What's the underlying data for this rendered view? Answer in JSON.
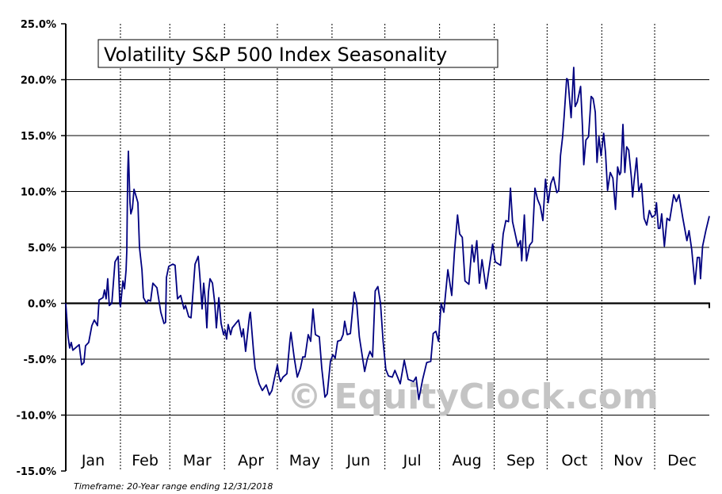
{
  "chart_data": {
    "type": "line",
    "title": "Volatility S&P 500 Index Seasonality",
    "footnote": "Timeframe: 20-Year range ending 12/31/2018",
    "watermark": "© EquityClock.com",
    "xlabel": "",
    "ylabel": "",
    "ylim": [
      -15,
      25
    ],
    "xlim": [
      0,
      365
    ],
    "x_unit": "day of year",
    "y_ticks": [
      25,
      20,
      15,
      10,
      5,
      0,
      -5,
      -10,
      -15
    ],
    "y_tick_labels": [
      "25.0%",
      "20.0%",
      "15.0%",
      "10.0%",
      "5.0%",
      "0.0%",
      "-5.0%",
      "-10.0%",
      "-15.0%"
    ],
    "months": [
      "Jan",
      "Feb",
      "Mar",
      "Apr",
      "May",
      "Jun",
      "Jul",
      "Aug",
      "Sep",
      "Oct",
      "Nov",
      "Dec"
    ],
    "month_start_days": [
      0,
      31,
      59,
      90,
      120,
      151,
      181,
      212,
      243,
      273,
      304,
      334
    ],
    "grid": true,
    "colors": {
      "line": "#000080",
      "grid": "#000000",
      "watermark": "#c4c4c4"
    },
    "series": [
      {
        "name": "Volatility S&P 500 Index",
        "points": [
          [
            0,
            0
          ],
          [
            1.3,
            -3
          ],
          [
            2.2,
            -4
          ],
          [
            3.1,
            -3.5
          ],
          [
            4,
            -4.2
          ],
          [
            5.4,
            -4
          ],
          [
            7.6,
            -3.7
          ],
          [
            9,
            -5.5
          ],
          [
            10.3,
            -5.3
          ],
          [
            11.2,
            -3.8
          ],
          [
            13,
            -3.5
          ],
          [
            14.8,
            -2
          ],
          [
            16.2,
            -1.5
          ],
          [
            18,
            -2
          ],
          [
            18.9,
            0.3
          ],
          [
            21.1,
            0.5
          ],
          [
            22,
            1.2
          ],
          [
            22.9,
            0.4
          ],
          [
            23.8,
            2.2
          ],
          [
            24.7,
            -0.2
          ],
          [
            26.1,
            0
          ],
          [
            27.9,
            3.7
          ],
          [
            29.7,
            4.2
          ],
          [
            30.6,
            0
          ],
          [
            31,
            -0.3
          ],
          [
            32.4,
            2
          ],
          [
            33.3,
            1.3
          ],
          [
            34.2,
            3
          ],
          [
            34.6,
            4.7
          ],
          [
            35.1,
            11.5
          ],
          [
            35.5,
            13.6
          ],
          [
            36.4,
            9
          ],
          [
            36.9,
            8
          ],
          [
            37.8,
            8.5
          ],
          [
            38.7,
            10.2
          ],
          [
            40,
            9.5
          ],
          [
            40.9,
            9
          ],
          [
            41.8,
            5
          ],
          [
            43.2,
            3
          ],
          [
            44.1,
            0.5
          ],
          [
            45.8,
            0
          ],
          [
            46.7,
            0.3
          ],
          [
            48.1,
            0.2
          ],
          [
            49.4,
            1.8
          ],
          [
            51.7,
            1.4
          ],
          [
            53.9,
            -0.8
          ],
          [
            55.7,
            -1.8
          ],
          [
            56.6,
            -1.7
          ],
          [
            57.1,
            2.3
          ],
          [
            58.4,
            3.3
          ],
          [
            60.7,
            3.5
          ],
          [
            62,
            3.4
          ],
          [
            63.4,
            0.4
          ],
          [
            65.2,
            0.7
          ],
          [
            67,
            -0.5
          ],
          [
            67.9,
            -0.2
          ],
          [
            69.7,
            -1.2
          ],
          [
            71,
            -1.3
          ],
          [
            71.9,
            0.5
          ],
          [
            73.3,
            3.5
          ],
          [
            75.1,
            4.2
          ],
          [
            76,
            2.5
          ],
          [
            77.3,
            -0.5
          ],
          [
            78.2,
            1.8
          ],
          [
            79.1,
            0.3
          ],
          [
            80,
            -2.2
          ],
          [
            80.9,
            1
          ],
          [
            81.8,
            2.2
          ],
          [
            83.2,
            1.8
          ],
          [
            84.5,
            0
          ],
          [
            85.4,
            -2.2
          ],
          [
            86.8,
            0.5
          ],
          [
            88.1,
            -1.8
          ],
          [
            89.5,
            -2.8
          ],
          [
            90.4,
            -2.4
          ],
          [
            91.2,
            -3.2
          ],
          [
            92.1,
            -1.9
          ],
          [
            93.5,
            -2.8
          ],
          [
            94.4,
            -2.2
          ],
          [
            98,
            -1.5
          ],
          [
            99.8,
            -3
          ],
          [
            100.7,
            -2.3
          ],
          [
            102,
            -4.3
          ],
          [
            104.3,
            -1
          ],
          [
            104.7,
            -0.8
          ],
          [
            106.5,
            -4.3
          ],
          [
            107.4,
            -5.8
          ],
          [
            109.7,
            -7.2
          ],
          [
            111.5,
            -7.8
          ],
          [
            113.7,
            -7.3
          ],
          [
            115.5,
            -8.2
          ],
          [
            116.9,
            -7.8
          ],
          [
            118.2,
            -6.8
          ],
          [
            120,
            -5.5
          ],
          [
            120.9,
            -6.5
          ],
          [
            121.8,
            -7
          ],
          [
            123.2,
            -6.6
          ],
          [
            125.4,
            -6.3
          ],
          [
            127.2,
            -3.2
          ],
          [
            127.7,
            -2.6
          ],
          [
            129.5,
            -4.8
          ],
          [
            131.3,
            -6.6
          ],
          [
            133.1,
            -5.8
          ],
          [
            134.4,
            -4.8
          ],
          [
            135.7,
            -4.8
          ],
          [
            137.5,
            -2.8
          ],
          [
            138.9,
            -3.4
          ],
          [
            140.2,
            -0.5
          ],
          [
            141.6,
            -2.8
          ],
          [
            143.8,
            -3
          ],
          [
            145.2,
            -5.8
          ],
          [
            147,
            -8.4
          ],
          [
            148.3,
            -8.1
          ],
          [
            150.1,
            -5.2
          ],
          [
            151.5,
            -4.6
          ],
          [
            152.8,
            -4.9
          ],
          [
            154.2,
            -3.4
          ],
          [
            156,
            -3.3
          ],
          [
            157.3,
            -2.8
          ],
          [
            158.2,
            -1.6
          ],
          [
            159.6,
            -2.8
          ],
          [
            161.4,
            -2.7
          ],
          [
            162.7,
            -0.5
          ],
          [
            163.6,
            1
          ],
          [
            165,
            0
          ],
          [
            166.5,
            -3
          ],
          [
            169.5,
            -6.1
          ],
          [
            171,
            -5
          ],
          [
            172.5,
            -4.3
          ],
          [
            174,
            -4.8
          ],
          [
            175.5,
            1.1
          ],
          [
            177,
            1.5
          ],
          [
            178.5,
            0
          ],
          [
            180,
            -3.4
          ],
          [
            181.5,
            -5.9
          ],
          [
            183,
            -6.5
          ],
          [
            185.2,
            -6.6
          ],
          [
            186.7,
            -6
          ],
          [
            189.7,
            -7.2
          ],
          [
            192,
            -5.1
          ],
          [
            194.2,
            -6.8
          ],
          [
            197.2,
            -7
          ],
          [
            198.7,
            -6.6
          ],
          [
            200.2,
            -8.6
          ],
          [
            202.4,
            -6.8
          ],
          [
            204.7,
            -5.3
          ],
          [
            207,
            -5.2
          ],
          [
            208.4,
            -2.7
          ],
          [
            209.9,
            -2.5
          ],
          [
            211.4,
            -3.4
          ],
          [
            212.9,
            0
          ],
          [
            214.4,
            -0.8
          ],
          [
            216.7,
            3
          ],
          [
            218.9,
            0.7
          ],
          [
            220.4,
            4.5
          ],
          [
            222.2,
            7.9
          ],
          [
            223.4,
            6.2
          ],
          [
            224.9,
            5.9
          ],
          [
            226.4,
            2
          ],
          [
            228.6,
            1.7
          ],
          [
            230.4,
            5.2
          ],
          [
            231.6,
            3.7
          ],
          [
            233.1,
            5.6
          ],
          [
            234.6,
            1.8
          ],
          [
            236.1,
            3.9
          ],
          [
            238.4,
            1.3
          ],
          [
            240.6,
            3.7
          ],
          [
            242.1,
            5.3
          ],
          [
            243.6,
            3.7
          ],
          [
            246.6,
            3.4
          ],
          [
            248.1,
            6.2
          ],
          [
            249.6,
            7.4
          ],
          [
            251.1,
            7.3
          ],
          [
            252.2,
            10.3
          ],
          [
            253.4,
            7.3
          ],
          [
            254.9,
            6.2
          ],
          [
            256.4,
            5.1
          ],
          [
            257.9,
            5.6
          ],
          [
            258.6,
            3.8
          ],
          [
            260.1,
            7.9
          ],
          [
            261.3,
            3.8
          ],
          [
            263.1,
            5.2
          ],
          [
            264.6,
            5.5
          ],
          [
            266.1,
            10.3
          ],
          [
            267.6,
            9.3
          ],
          [
            269.1,
            8.7
          ],
          [
            270.6,
            7.4
          ],
          [
            272.1,
            11.1
          ],
          [
            273.6,
            9
          ],
          [
            275.1,
            10.7
          ],
          [
            276.6,
            11.3
          ],
          [
            278.5,
            9.9
          ],
          [
            279.6,
            10.1
          ],
          [
            280.6,
            13.2
          ],
          [
            281.8,
            14.9
          ],
          [
            282.6,
            16.6
          ],
          [
            284.1,
            20.1
          ],
          [
            284.8,
            20
          ],
          [
            286.6,
            16.6
          ],
          [
            288.1,
            21.1
          ],
          [
            288.9,
            17.6
          ],
          [
            290.1,
            18
          ],
          [
            292,
            19.4
          ],
          [
            293.1,
            15.7
          ],
          [
            293.8,
            12.4
          ],
          [
            295,
            14.6
          ],
          [
            296.5,
            14.9
          ],
          [
            298,
            18.5
          ],
          [
            299.1,
            18.3
          ],
          [
            300.3,
            17.1
          ],
          [
            301.3,
            12.6
          ],
          [
            302.4,
            14.9
          ],
          [
            303.6,
            13.2
          ],
          [
            305.1,
            15.2
          ],
          [
            306.1,
            13.5
          ],
          [
            307.3,
            10.1
          ],
          [
            308.8,
            11.7
          ],
          [
            310.3,
            11.2
          ],
          [
            311.8,
            8.4
          ],
          [
            313,
            12.2
          ],
          [
            314.1,
            11.5
          ],
          [
            314.8,
            11.7
          ],
          [
            316,
            16
          ],
          [
            317.1,
            11.7
          ],
          [
            318.1,
            14
          ],
          [
            319.3,
            13.7
          ],
          [
            320.8,
            11.2
          ],
          [
            321.5,
            9.5
          ],
          [
            322.3,
            10.9
          ],
          [
            323.8,
            13
          ],
          [
            325,
            10
          ],
          [
            326.5,
            10.7
          ],
          [
            328,
            7.6
          ],
          [
            329.5,
            7
          ],
          [
            331,
            8.3
          ],
          [
            332.5,
            7.7
          ],
          [
            334.3,
            7.9
          ],
          [
            335,
            9
          ],
          [
            336.1,
            6.7
          ],
          [
            337,
            6.7
          ],
          [
            338,
            8
          ],
          [
            339.5,
            5.1
          ],
          [
            341,
            7.6
          ],
          [
            342.5,
            7.4
          ],
          [
            344.8,
            9.7
          ],
          [
            346.3,
            9.1
          ],
          [
            347.8,
            9.7
          ],
          [
            350,
            7.6
          ],
          [
            352.3,
            5.6
          ],
          [
            353.5,
            6.5
          ],
          [
            355,
            4.8
          ],
          [
            356.8,
            1.7
          ],
          [
            358.2,
            4.1
          ],
          [
            359.4,
            4.1
          ],
          [
            360,
            2.2
          ],
          [
            361.2,
            5.1
          ],
          [
            363,
            6.5
          ],
          [
            365,
            7.8
          ]
        ]
      }
    ]
  }
}
